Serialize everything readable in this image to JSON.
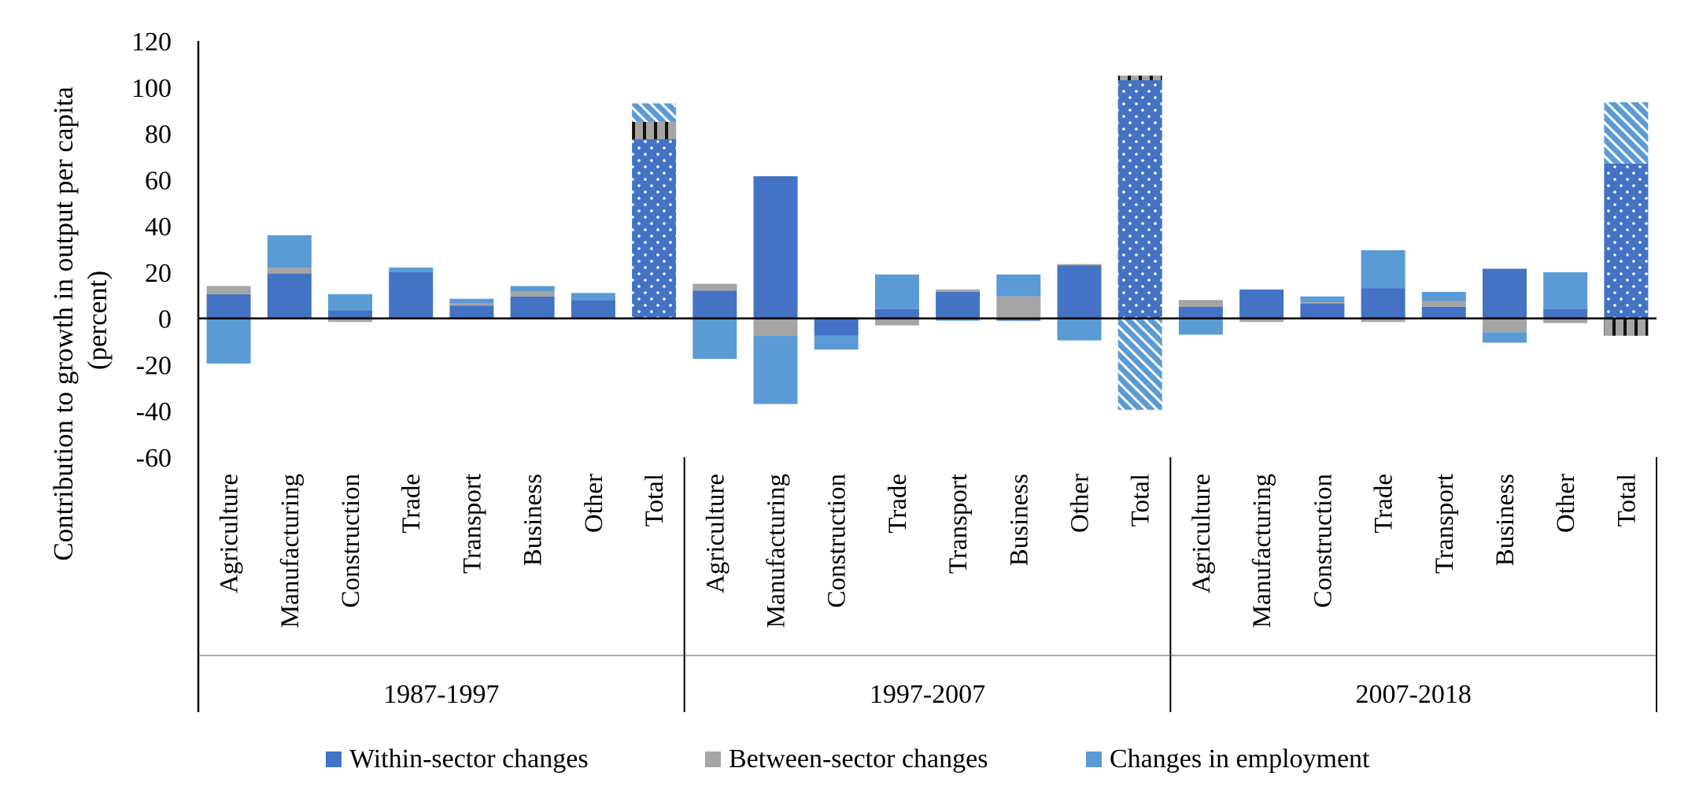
{
  "chart_data": {
    "type": "bar",
    "stacking": "stacked",
    "ylabel": "Contribution to growth in output per capita (percent)",
    "ylabel_lines": [
      "Contribution to growth in output per capita",
      "(percent)"
    ],
    "ylim": [
      -60,
      120
    ],
    "yticks": [
      -60,
      -40,
      -20,
      0,
      20,
      40,
      60,
      80,
      100,
      120
    ],
    "grid": false,
    "legend_position": "bottom",
    "groups": [
      {
        "label": "1987-1997",
        "categories": [
          "Agriculture",
          "Manufacturing",
          "Construction",
          "Trade",
          "Transport",
          "Business",
          "Other",
          "Total"
        ]
      },
      {
        "label": "1997-2007",
        "categories": [
          "Agriculture",
          "Manufacturing",
          "Construction",
          "Trade",
          "Transport",
          "Business",
          "Other",
          "Total"
        ]
      },
      {
        "label": "2007-2018",
        "categories": [
          "Agriculture",
          "Manufacturing",
          "Construction",
          "Trade",
          "Transport",
          "Business",
          "Other",
          "Total"
        ]
      }
    ],
    "series": [
      {
        "name": "Within-sector changes",
        "color": "#4472C4",
        "values": [
          [
            10.5,
            19.5,
            3.5,
            20,
            5.5,
            9.5,
            8,
            77.5
          ],
          [
            12,
            61.5,
            -7.5,
            4,
            11.5,
            -1,
            23,
            103
          ],
          [
            5,
            12.5,
            6.5,
            13,
            5,
            21.5,
            4,
            67
          ]
        ]
      },
      {
        "name": "Between-sector changes",
        "color": "#A5A5A5",
        "values": [
          [
            3.5,
            2.5,
            -1.5,
            0,
            1,
            2,
            0,
            7.5
          ],
          [
            3,
            -7.5,
            0.5,
            -3,
            1,
            9.5,
            0.5,
            2
          ],
          [
            3,
            -1.5,
            0.5,
            -1.5,
            2.5,
            -6,
            -2,
            -7.5
          ]
        ]
      },
      {
        "name": "Changes in employment",
        "color": "#5B9BD5",
        "values": [
          [
            -19.5,
            14,
            7,
            2,
            2,
            2.5,
            3,
            8
          ],
          [
            -17.5,
            -29.5,
            -6,
            15,
            -1,
            9.5,
            -9.5,
            -39.5
          ],
          [
            -7,
            0,
            2.5,
            16.5,
            4,
            -4.5,
            16,
            26.5
          ]
        ]
      }
    ]
  }
}
